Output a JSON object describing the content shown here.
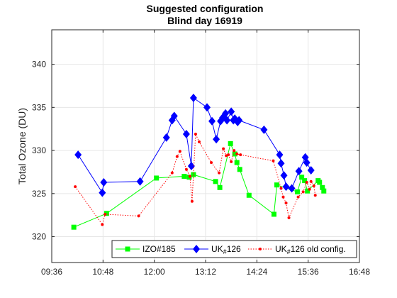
{
  "chart_data": {
    "type": "line",
    "title": [
      "Suggested configuration",
      "Blind day 16919"
    ],
    "ylabel": "Total Ozone (DU)",
    "xlabel": "",
    "x_ticks": [
      "09:36",
      "10:48",
      "12:00",
      "13:12",
      "14:24",
      "15:36",
      "16:48"
    ],
    "x_tick_minutes": [
      576,
      648,
      720,
      792,
      864,
      936,
      1008
    ],
    "xlim": [
      "09:36",
      "16:48"
    ],
    "y_ticks": [
      320,
      325,
      330,
      335,
      340
    ],
    "ylim": [
      317,
      344
    ],
    "grid": true,
    "legend_position": "bottom",
    "series": [
      {
        "name": "IZO#185",
        "color": "#00ff00",
        "marker": "square",
        "line": "solid",
        "x": [
          "10:07",
          "10:53",
          "12:03",
          "12:42",
          "12:49",
          "12:55",
          "13:26",
          "13:32",
          "13:47",
          "13:53",
          "13:56",
          "14:00",
          "14:13",
          "14:48",
          "14:52",
          "15:21",
          "15:27",
          "15:31",
          "15:35",
          "15:50",
          "15:52",
          "15:56",
          "15:58"
        ],
        "y": [
          321.1,
          322.7,
          326.8,
          327.0,
          326.9,
          327.2,
          326.4,
          325.7,
          330.8,
          329.6,
          328.6,
          327.8,
          324.8,
          322.6,
          326.0,
          325.2,
          326.9,
          326.5,
          325.3,
          326.5,
          326.3,
          325.7,
          325.3
        ]
      },
      {
        "name": "UK_#126",
        "color": "#0000ff",
        "marker": "diamond",
        "line": "solid",
        "x": [
          "10:13",
          "10:47",
          "10:49",
          "11:40",
          "12:17",
          "12:25",
          "12:28",
          "12:45",
          "12:52",
          "12:55",
          "13:14",
          "13:21",
          "13:27",
          "13:33",
          "13:36",
          "13:40",
          "13:42",
          "13:48",
          "13:51",
          "13:53",
          "13:57",
          "13:59",
          "14:34",
          "14:56",
          "14:58",
          "15:02",
          "15:05",
          "15:13",
          "15:23",
          "15:32",
          "15:34",
          "15:40"
        ],
        "y": [
          329.5,
          325.1,
          326.3,
          326.4,
          331.5,
          333.5,
          334.0,
          331.9,
          328.2,
          336.1,
          335.0,
          333.4,
          331.3,
          333.4,
          333.8,
          334.3,
          333.5,
          334.5,
          333.5,
          333.7,
          333.3,
          333.5,
          332.4,
          329.5,
          328.5,
          327.1,
          325.8,
          325.6,
          327.6,
          329.2,
          328.6,
          327.7
        ]
      },
      {
        "name": "UK_#126 old config.",
        "color": "#ff0000",
        "marker": "dot",
        "line": "dotted",
        "x": [
          "10:09",
          "10:47",
          "10:51",
          "11:38",
          "12:25",
          "12:32",
          "12:36",
          "12:45",
          "12:50",
          "12:53",
          "12:58",
          "13:03",
          "13:20",
          "13:31",
          "13:37",
          "13:41",
          "13:44",
          "13:48",
          "13:52",
          "13:56",
          "14:01",
          "14:47",
          "14:58",
          "15:01",
          "15:05",
          "15:09",
          "15:22",
          "15:29",
          "15:34",
          "15:38",
          "15:40",
          "15:44",
          "15:46"
        ],
        "y": [
          325.8,
          321.4,
          322.6,
          322.4,
          327.4,
          329.3,
          329.9,
          327.8,
          327.0,
          324.1,
          331.9,
          331.0,
          328.6,
          327.4,
          330.2,
          329.4,
          329.5,
          328.7,
          330.0,
          329.6,
          329.5,
          328.8,
          325.6,
          324.6,
          323.9,
          322.2,
          324.6,
          325.2,
          326.3,
          325.5,
          326.4,
          325.9,
          324.8
        ]
      }
    ],
    "legend": [
      "IZO#185",
      "UK",
      "#",
      "126",
      "UK",
      "#",
      "126 old config."
    ]
  },
  "colors": {
    "grid": "#e6e6e6",
    "axis": "#262626"
  }
}
